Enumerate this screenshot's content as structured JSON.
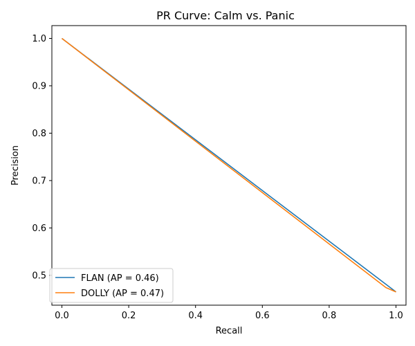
{
  "chart_data": {
    "type": "line",
    "title": "PR Curve: Calm vs. Panic",
    "xlabel": "Recall",
    "ylabel": "Precision",
    "xlim": [
      -0.03,
      1.03
    ],
    "ylim": [
      0.437,
      1.027
    ],
    "x_ticks": [
      0.0,
      0.2,
      0.4,
      0.6,
      0.8,
      1.0
    ],
    "x_tick_labels": [
      "0.0",
      "0.2",
      "0.4",
      "0.6",
      "0.8",
      "1.0"
    ],
    "y_ticks": [
      0.5,
      0.6,
      0.7,
      0.8,
      0.9,
      1.0
    ],
    "y_tick_labels": [
      "0.5",
      "0.6",
      "0.7",
      "0.8",
      "0.9",
      "1.0"
    ],
    "grid": false,
    "legend_position": "lower-left",
    "series": [
      {
        "name": "FLAN (AP = 0.46)",
        "color": "#1f77b4",
        "x": [
          0.0,
          1.0
        ],
        "y": [
          1.0,
          0.465
        ]
      },
      {
        "name": "DOLLY (AP = 0.47)",
        "color": "#ff7f0e",
        "x": [
          0.0,
          0.97,
          1.0
        ],
        "y": [
          1.0,
          0.474,
          0.465
        ]
      }
    ]
  }
}
